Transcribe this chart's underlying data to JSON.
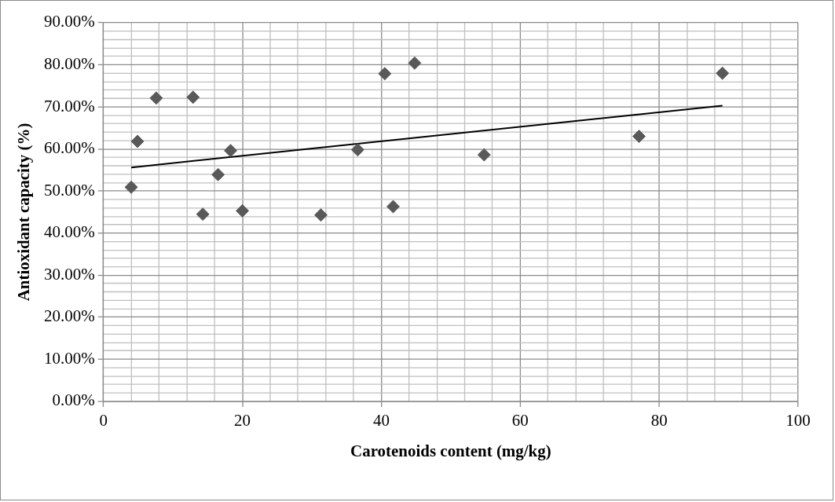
{
  "chart_data": {
    "type": "scatter",
    "xlabel": "Carotenoids content (mg/kg)",
    "ylabel": "Antioxidant capacity (%)",
    "grid": true,
    "legend": false,
    "xlim": [
      0,
      100
    ],
    "xticks": [
      0,
      {
        "value": 4,
        "label": null
      },
      {
        "value": 8,
        "label": null
      },
      {
        "value": 12,
        "label": null
      },
      {
        "value": 16,
        "label": null
      },
      20,
      {
        "value": 24,
        "label": null
      },
      {
        "value": 28,
        "label": null
      },
      {
        "value": 32,
        "label": null
      },
      {
        "value": 36,
        "label": null
      },
      40,
      {
        "value": 44,
        "label": null
      },
      {
        "value": 48,
        "label": null
      },
      {
        "value": 52,
        "label": null
      },
      {
        "value": 56,
        "label": null
      },
      60,
      {
        "value": 64,
        "label": null
      },
      {
        "value": 68,
        "label": null
      },
      {
        "value": 72,
        "label": null
      },
      {
        "value": 76,
        "label": null
      },
      80,
      {
        "value": 84,
        "label": null
      },
      {
        "value": 88,
        "label": null
      },
      {
        "value": 92,
        "label": null
      },
      {
        "value": 96,
        "label": null
      },
      100
    ],
    "ylim": [
      0,
      90
    ],
    "yticks": [
      {
        "value": 0,
        "label": "0.00%"
      },
      {
        "value": 2,
        "label": null
      },
      {
        "value": 4,
        "label": null
      },
      {
        "value": 6,
        "label": null
      },
      {
        "value": 8,
        "label": null
      },
      {
        "value": 10,
        "label": "10.00%"
      },
      {
        "value": 12,
        "label": null
      },
      {
        "value": 14,
        "label": null
      },
      {
        "value": 16,
        "label": null
      },
      {
        "value": 18,
        "label": null
      },
      {
        "value": 20,
        "label": "20.00%"
      },
      {
        "value": 22,
        "label": null
      },
      {
        "value": 24,
        "label": null
      },
      {
        "value": 26,
        "label": null
      },
      {
        "value": 28,
        "label": null
      },
      {
        "value": 30,
        "label": "30.00%"
      },
      {
        "value": 32,
        "label": null
      },
      {
        "value": 34,
        "label": null
      },
      {
        "value": 36,
        "label": null
      },
      {
        "value": 38,
        "label": null
      },
      {
        "value": 40,
        "label": "40.00%"
      },
      {
        "value": 42,
        "label": null
      },
      {
        "value": 44,
        "label": null
      },
      {
        "value": 46,
        "label": null
      },
      {
        "value": 48,
        "label": null
      },
      {
        "value": 50,
        "label": "50.00%"
      },
      {
        "value": 52,
        "label": null
      },
      {
        "value": 54,
        "label": null
      },
      {
        "value": 56,
        "label": null
      },
      {
        "value": 58,
        "label": null
      },
      {
        "value": 60,
        "label": "60.00%"
      },
      {
        "value": 62,
        "label": null
      },
      {
        "value": 64,
        "label": null
      },
      {
        "value": 66,
        "label": null
      },
      {
        "value": 68,
        "label": null
      },
      {
        "value": 70,
        "label": "70.00%"
      },
      {
        "value": 72,
        "label": null
      },
      {
        "value": 74,
        "label": null
      },
      {
        "value": 76,
        "label": null
      },
      {
        "value": 78,
        "label": null
      },
      {
        "value": 80,
        "label": "80.00%"
      },
      {
        "value": 82,
        "label": null
      },
      {
        "value": 84,
        "label": null
      },
      {
        "value": 86,
        "label": null
      },
      {
        "value": 88,
        "label": null
      },
      {
        "value": 90,
        "label": "90.00%"
      }
    ],
    "series": [
      {
        "marker": "diamond",
        "color": "#595959",
        "x": [
          4.0,
          4.9,
          7.6,
          12.9,
          14.3,
          16.5,
          18.3,
          20.0,
          31.3,
          36.6,
          40.5,
          41.7,
          44.8,
          54.8,
          77.1,
          89.1
        ],
        "values": [
          50.9,
          61.8,
          72.1,
          72.3,
          44.5,
          53.9,
          59.6,
          45.3,
          44.3,
          59.8,
          77.9,
          46.3,
          80.4,
          58.6,
          63.0,
          78.0
        ]
      },
      {
        "type": "line",
        "marker": "none",
        "color": "#000000",
        "x": [
          4.0,
          89.1
        ],
        "values": [
          55.6,
          70.3
        ]
      }
    ]
  }
}
